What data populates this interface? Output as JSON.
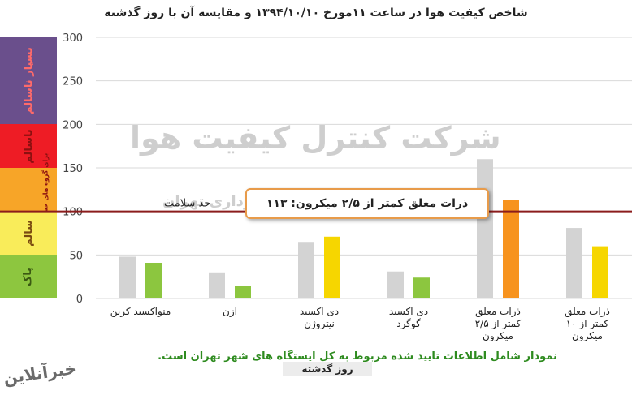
{
  "chart_data": {
    "type": "bar",
    "title": "شاخص کیفیت هوا در ساعت ۱۱مورخ ۱۳۹۴/۱۰/۱۰ و مقایسه آن با روز گذشته",
    "ylim": [
      0,
      300
    ],
    "yticks": [
      0,
      50,
      100,
      150,
      200,
      250,
      300
    ],
    "grid": true,
    "categories": [
      [
        "منواکسید کربن"
      ],
      [
        "ازن"
      ],
      [
        "دی اکسید",
        "نیتروژن"
      ],
      [
        "دی اکسید",
        "گوگرد"
      ],
      [
        "ذرات معلق",
        "کمتر از ۲/۵",
        "میکرون"
      ],
      [
        "ذرات معلق",
        "کمتر از ۱۰",
        "میکرون"
      ]
    ],
    "series": [
      {
        "name": "روز گذشته",
        "color": "#d3d3d3",
        "values": [
          48,
          30,
          65,
          31,
          160,
          81
        ]
      },
      {
        "name": "",
        "colors": [
          "#8cc63f",
          "#8cc63f",
          "#f6d600",
          "#8cc63f",
          "#f7931e",
          "#f6d600"
        ],
        "values": [
          41,
          14,
          71,
          24,
          113,
          60
        ]
      }
    ],
    "reference_line": {
      "value": 100,
      "label": "حد سلامت",
      "color": "#8b1c1c"
    },
    "annotation": "ذرات معلق کمتر از ۲/۵ میکرون: ۱۱۳",
    "note": "نمودار شامل اطلاعات تایید شده مربوط به کل ایستگاه های شهر تهران است.",
    "legend_label": "روز گذشته",
    "bands": [
      {
        "label": "بسیار ناسالم",
        "from": 200,
        "to": 300,
        "color": "#6a4f8c",
        "text_color": "#ff6a6a"
      },
      {
        "label": "ناسالم",
        "from": 150,
        "to": 200,
        "color": "#ee1c25",
        "text_color": "#8b1010"
      },
      {
        "label": "ناسالم",
        "sub": "برای گروه های حساس",
        "from": 100,
        "to": 150,
        "color": "#f7a528",
        "text_color": "#8b1010"
      },
      {
        "label": "سالم",
        "from": 50,
        "to": 100,
        "color": "#f9ec5a",
        "text_color": "#7a4a10"
      },
      {
        "label": "پاک",
        "from": 0,
        "to": 50,
        "color": "#8dc63f",
        "text_color": "#3b5a12"
      }
    ]
  },
  "watermark": {
    "line1": "شرکت کنترل کیفیت هوا",
    "line2": "وابسته به شهرداری تهران"
  },
  "logo_text": "خبرآنلاین"
}
